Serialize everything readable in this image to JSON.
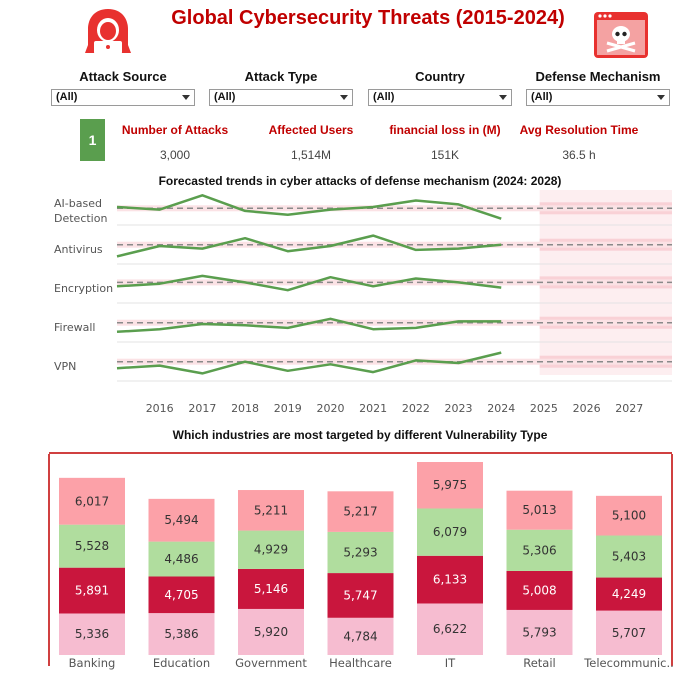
{
  "title": "Global Cybersecurity Threats (2015-2024)",
  "icons": [
    "hacker-icon",
    "skull-alert-icon"
  ],
  "filters": [
    {
      "label": "Attack Source",
      "value": "(All)"
    },
    {
      "label": "Attack Type",
      "value": "(All)"
    },
    {
      "label": "Country",
      "value": "(All)"
    },
    {
      "label": "Defense Mechanism",
      "value": "(All)"
    }
  ],
  "kpis": {
    "badge": "1",
    "items": [
      {
        "label": "Number of Attacks",
        "value": "3,000"
      },
      {
        "label": "Affected Users",
        "value": "1,514M"
      },
      {
        "label": "financial loss in (M)",
        "value": "151K"
      },
      {
        "label": "Avg Resolution Time",
        "value": "36.5 h"
      }
    ]
  },
  "colors": {
    "accent": "#c00000",
    "trend_line": "#5a9e4e",
    "forecast_band": "#f8c9cf",
    "banking_top": "#fca1a8",
    "seg_green": "#b0dd9e",
    "seg_crimson": "#c9163d",
    "seg_pink": "#f6bcd0"
  },
  "chart_data": [
    {
      "type": "line",
      "title": "Forecasted trends in cyber attacks of  defense mechanism (2024: 2028)",
      "x": [
        2015,
        2016,
        2017,
        2018,
        2019,
        2020,
        2021,
        2022,
        2023,
        2024
      ],
      "x_tick_labels": [
        "2016",
        "2017",
        "2018",
        "2019",
        "2020",
        "2021",
        "2022",
        "2023",
        "2024",
        "2025",
        "2026",
        "2027"
      ],
      "forecast_range": [
        2024.9,
        2028
      ],
      "rows": [
        {
          "label": "AI-based Detection",
          "values": [
            0.5,
            0.4,
            0.95,
            0.35,
            0.2,
            0.4,
            0.5,
            0.75,
            0.6,
            0.05
          ],
          "trend_level": 0.45
        },
        {
          "label": "Antivirus",
          "values": [
            0.1,
            0.5,
            0.4,
            0.8,
            0.3,
            0.5,
            0.9,
            0.35,
            0.4,
            0.55
          ],
          "trend_level": 0.55
        },
        {
          "label": "Encryption",
          "values": [
            0.45,
            0.55,
            0.85,
            0.6,
            0.3,
            0.8,
            0.45,
            0.75,
            0.6,
            0.4
          ],
          "trend_level": 0.6
        },
        {
          "label": "Firewall",
          "values": [
            0.2,
            0.3,
            0.5,
            0.45,
            0.35,
            0.7,
            0.3,
            0.35,
            0.6,
            0.6
          ],
          "trend_level": 0.55
        },
        {
          "label": "VPN",
          "values": [
            0.3,
            0.4,
            0.1,
            0.55,
            0.2,
            0.45,
            0.15,
            0.6,
            0.5,
            0.9
          ],
          "trend_level": 0.55
        }
      ]
    },
    {
      "type": "bar",
      "title": "Which industries are most targeted by different Vulnerability Type",
      "categories": [
        "Banking",
        "Education",
        "Government",
        "Healthcare",
        "IT",
        "Retail",
        "Telecommunic.."
      ],
      "stacked": true,
      "series": [
        {
          "values": [
            5336,
            5386,
            5920,
            4784,
            6622,
            5793,
            5707
          ]
        },
        {
          "values": [
            5891,
            4705,
            5146,
            5747,
            6133,
            5008,
            4249
          ]
        },
        {
          "values": [
            5528,
            4486,
            4929,
            5293,
            6079,
            5306,
            5403
          ]
        },
        {
          "values": [
            6017,
            5494,
            5211,
            5217,
            5975,
            5013,
            5100
          ]
        }
      ],
      "labels": [
        [
          "5,336",
          "5,386",
          "5,920",
          "4,784",
          "6,622",
          "5,793",
          "5,707"
        ],
        [
          "5,891",
          "4,705",
          "5,146",
          "5,747",
          "6,133",
          "5,008",
          "4,249"
        ],
        [
          "5,528",
          "4,486",
          "4,929",
          "5,293",
          "6,079",
          "5,306",
          "5,403"
        ],
        [
          "6,017",
          "5,494",
          "5,211",
          "5,217",
          "5,975",
          "5,013",
          "5,100"
        ]
      ]
    }
  ]
}
